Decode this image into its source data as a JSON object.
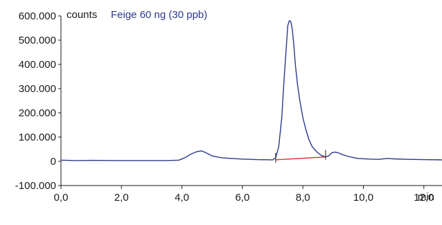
{
  "colors": {
    "trace": "#2b3990",
    "baseline": "#d9261c",
    "axis": "#1a1a1a"
  },
  "chart_data": {
    "type": "line",
    "xlabel": "min",
    "ylabel": "counts",
    "xlim": [
      0,
      12.6
    ],
    "ylim": [
      -100000,
      600000
    ],
    "grid": false,
    "x_ticks": [
      0,
      2,
      4,
      6,
      8,
      10,
      12
    ],
    "x_tick_labels": [
      "0,0",
      "2,0",
      "4,0",
      "6,0",
      "8,0",
      "10,0",
      "12,0"
    ],
    "y_ticks": [
      600000,
      500000,
      400000,
      300000,
      200000,
      100000,
      0,
      -100000
    ],
    "y_tick_labels": [
      "600.000",
      "500.000",
      "400.000",
      "300.000",
      "200.000",
      "100.000",
      "0",
      "-100.000"
    ],
    "series": [
      {
        "name": "Feige 60 ng (30 ppb)",
        "x": [
          0,
          0.5,
          1.0,
          1.5,
          2.0,
          2.5,
          3.0,
          3.5,
          3.9,
          4.1,
          4.3,
          4.5,
          4.65,
          4.8,
          5.0,
          5.3,
          5.6,
          6.0,
          6.5,
          7.0,
          7.1,
          7.2,
          7.3,
          7.38,
          7.45,
          7.5,
          7.55,
          7.6,
          7.65,
          7.7,
          7.75,
          7.82,
          7.9,
          8.0,
          8.1,
          8.2,
          8.3,
          8.45,
          8.6,
          8.75,
          8.85,
          8.95,
          9.05,
          9.15,
          9.3,
          9.5,
          9.8,
          10.2,
          10.5,
          10.8,
          11.0,
          11.5,
          12.0,
          12.6
        ],
        "y": [
          5000,
          3000,
          4000,
          3500,
          3000,
          3000,
          3000,
          3000,
          5000,
          15000,
          30000,
          40000,
          43000,
          35000,
          22000,
          15000,
          12000,
          9000,
          7000,
          6000,
          15000,
          60000,
          180000,
          340000,
          470000,
          560000,
          580000,
          578000,
          545000,
          480000,
          400000,
          320000,
          250000,
          180000,
          130000,
          90000,
          62000,
          40000,
          25000,
          18000,
          22000,
          35000,
          38000,
          36000,
          28000,
          20000,
          12000,
          9000,
          8000,
          12000,
          10000,
          8000,
          7000,
          6000
        ]
      }
    ],
    "baseline_segment": {
      "x": [
        7.1,
        8.75
      ],
      "y": [
        6000,
        18000
      ]
    },
    "integration_markers": [
      7.1,
      8.75
    ]
  }
}
